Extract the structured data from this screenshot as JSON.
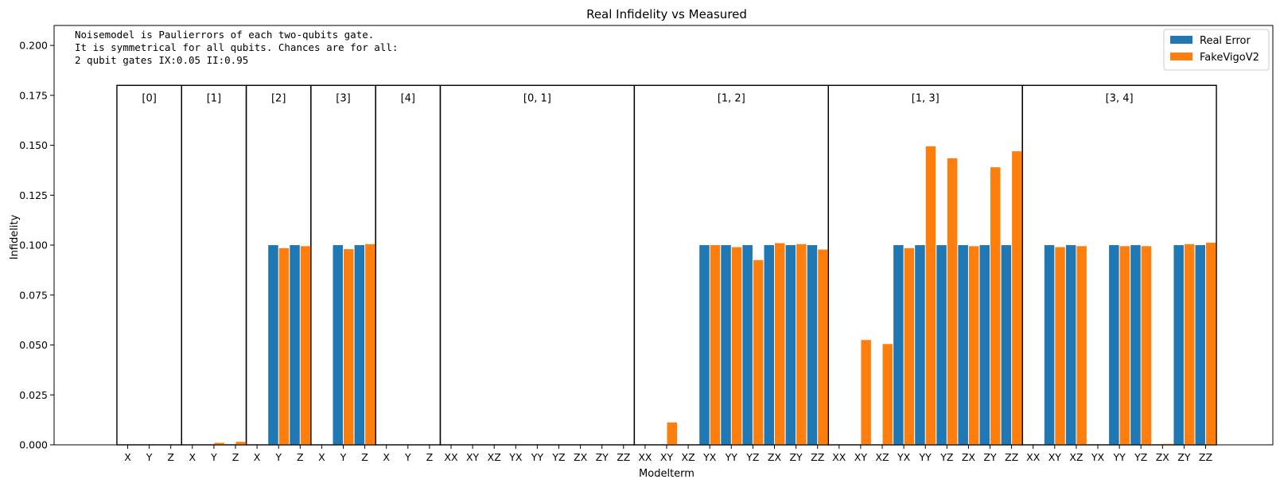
{
  "chart_data": {
    "type": "bar",
    "title": "Real Infidelity vs Measured",
    "xlabel": "Modelterm",
    "ylabel": "Infidelity",
    "ylim": [
      0,
      0.21
    ],
    "yticks": [
      "0.000",
      "0.025",
      "0.050",
      "0.075",
      "0.100",
      "0.125",
      "0.150",
      "0.175",
      "0.200"
    ],
    "annotation": [
      "Noisemodel is Paulierrors of each two-qubits gate.",
      "It is symmetrical for all qubits. Chances are for all:",
      "2 qubit gates IX:0.05   II:0.95"
    ],
    "legend": {
      "position": "top-right"
    },
    "groups": [
      {
        "label": "[0]",
        "terms": [
          "X",
          "Y",
          "Z"
        ]
      },
      {
        "label": "[1]",
        "terms": [
          "X",
          "Y",
          "Z"
        ]
      },
      {
        "label": "[2]",
        "terms": [
          "X",
          "Y",
          "Z"
        ]
      },
      {
        "label": "[3]",
        "terms": [
          "X",
          "Y",
          "Z"
        ]
      },
      {
        "label": "[4]",
        "terms": [
          "X",
          "Y",
          "Z"
        ]
      },
      {
        "label": "[0, 1]",
        "terms": [
          "XX",
          "XY",
          "XZ",
          "YX",
          "YY",
          "YZ",
          "ZX",
          "ZY",
          "ZZ"
        ]
      },
      {
        "label": "[1, 2]",
        "terms": [
          "XX",
          "XY",
          "XZ",
          "YX",
          "YY",
          "YZ",
          "ZX",
          "ZY",
          "ZZ"
        ]
      },
      {
        "label": "[1, 3]",
        "terms": [
          "XX",
          "XY",
          "XZ",
          "YX",
          "YY",
          "YZ",
          "ZX",
          "ZY",
          "ZZ"
        ]
      },
      {
        "label": "[3, 4]",
        "terms": [
          "XX",
          "XY",
          "XZ",
          "YX",
          "YY",
          "YZ",
          "ZX",
          "ZY",
          "ZZ"
        ]
      }
    ],
    "series": [
      {
        "name": "Real Error",
        "color": "#1f77b4",
        "values": [
          0,
          0,
          0,
          0,
          0,
          0,
          0,
          0.1,
          0.1,
          0,
          0.1,
          0.1,
          0,
          0,
          0,
          0,
          0,
          0,
          0,
          0,
          0,
          0,
          0,
          0,
          0,
          0,
          0,
          0.1,
          0.1,
          0.1,
          0.1,
          0.1,
          0.1,
          0,
          0,
          0,
          0.1,
          0.1,
          0.1,
          0.1,
          0.1,
          0.1,
          0,
          0.1,
          0.1,
          0,
          0.1,
          0.1,
          0,
          0.1,
          0.1
        ]
      },
      {
        "name": "FakeVigoV2",
        "color": "#ff7f0e",
        "values": [
          0,
          0,
          0,
          0,
          0.001,
          0.0015,
          0,
          0.0985,
          0.0995,
          0,
          0.098,
          0.1005,
          0,
          0,
          0,
          0,
          0,
          0,
          0,
          0,
          0,
          0,
          0,
          0,
          0,
          0.0112,
          0,
          0.1,
          0.099,
          0.0925,
          0.101,
          0.1005,
          0.0978,
          0,
          0.0525,
          0.0505,
          0.0985,
          0.1495,
          0.1435,
          0.0995,
          0.139,
          0.147,
          0,
          0.099,
          0.0995,
          0,
          0.0995,
          0.0995,
          0.0005,
          0.1005,
          0.1012
        ]
      }
    ]
  }
}
